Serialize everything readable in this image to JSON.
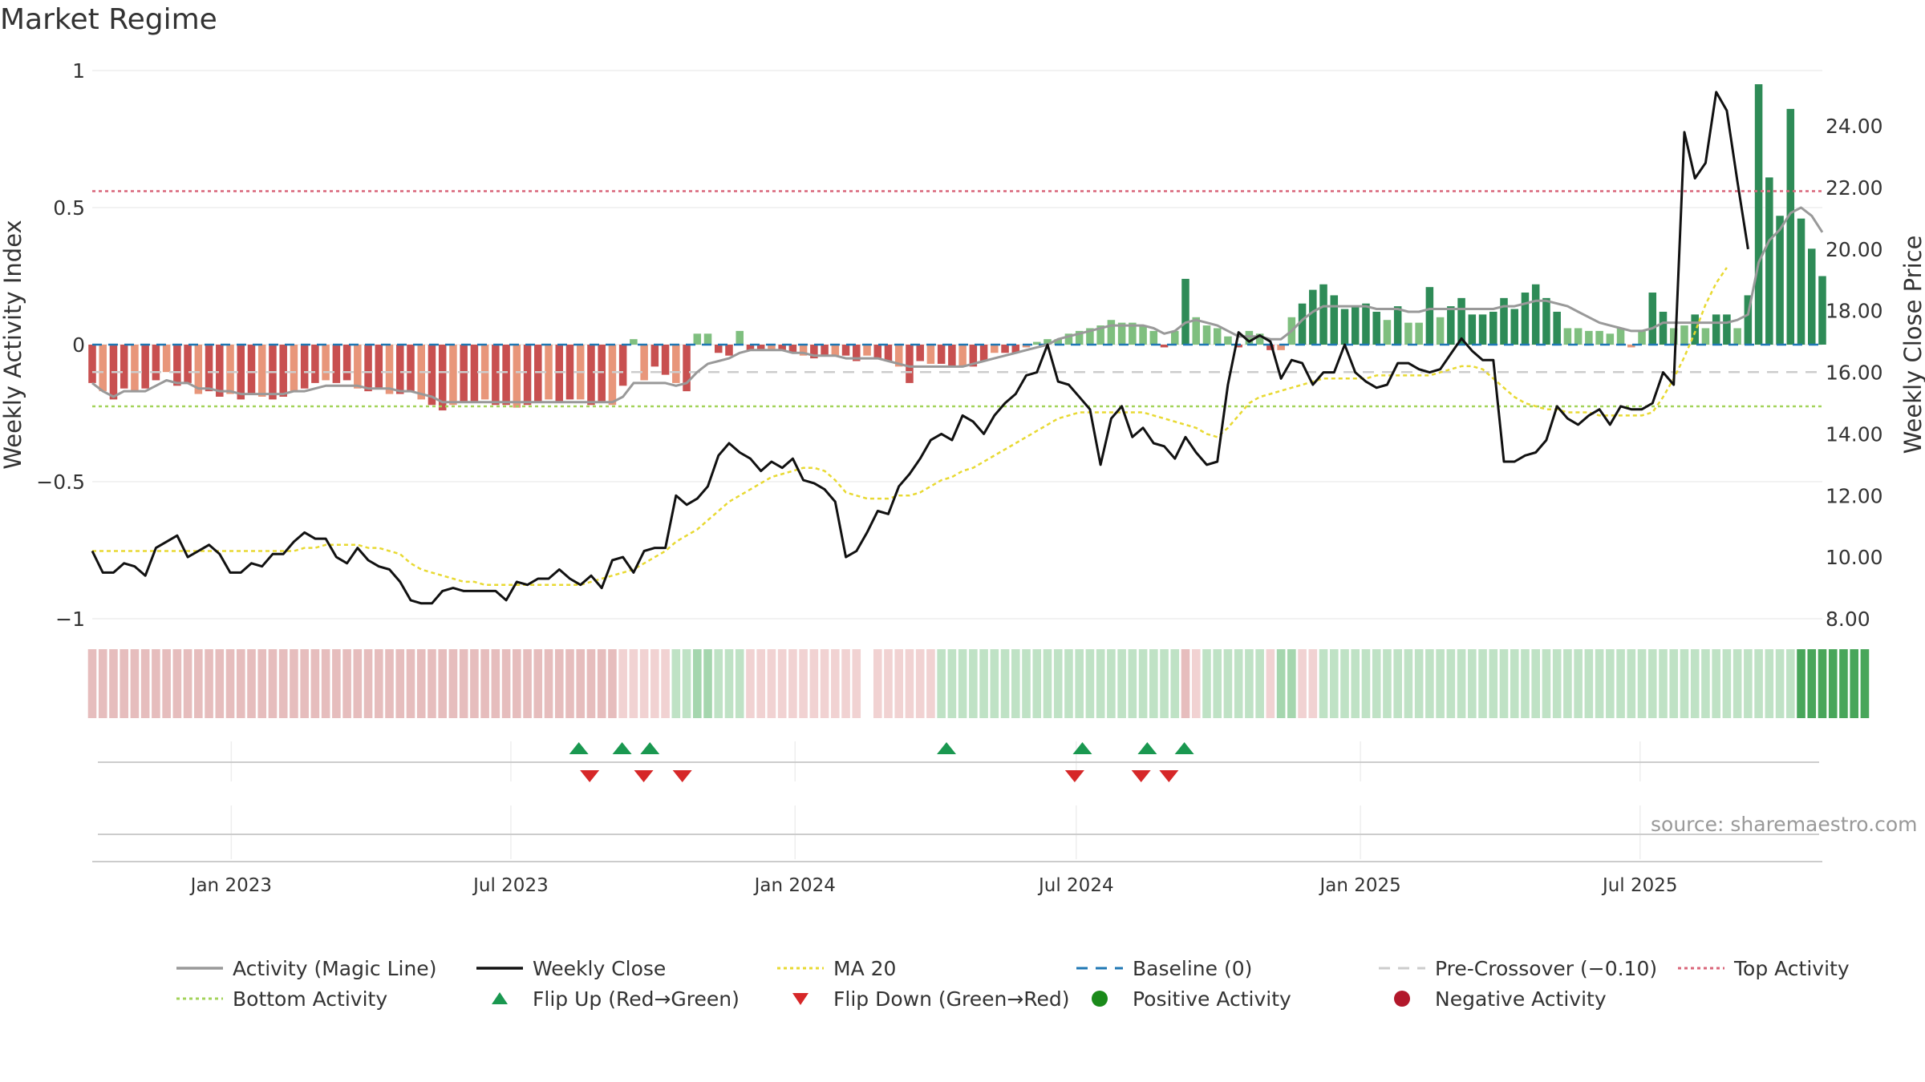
{
  "title": "Market Regime",
  "source": "source: sharemaestro.com",
  "colors": {
    "magic_line": "#999999",
    "close": "#111111",
    "ma20": "#e8d932",
    "baseline": "#1f77b4",
    "pre_crossover": "#cccccc",
    "top": "#d9667a",
    "bottom": "#a3d35a",
    "flip_up": "#1a9850",
    "flip_down": "#d62728",
    "positive": "#1a8a1a",
    "negative": "#b2182b",
    "bar_pos_strong": "#2e8b57",
    "bar_pos_weak": "#7fbf7f",
    "bar_neg_strong": "#c85050",
    "bar_neg_weak": "#e8967a"
  },
  "legend": [
    {
      "key": "magic",
      "label": "Activity (Magic Line)",
      "icon": "solid-line"
    },
    {
      "key": "close",
      "label": "Weekly Close",
      "icon": "solid-line"
    },
    {
      "key": "ma20",
      "label": "MA 20",
      "icon": "dotted-line"
    },
    {
      "key": "baseline",
      "label": "Baseline (0)",
      "icon": "dashed-line"
    },
    {
      "key": "pre",
      "label": "Pre-Crossover (−0.10)",
      "icon": "dashed-line"
    },
    {
      "key": "top",
      "label": "Top Activity",
      "icon": "dotted-line"
    },
    {
      "key": "bottom",
      "label": "Bottom Activity",
      "icon": "dotted-line"
    },
    {
      "key": "flipup",
      "label": "Flip Up (Red→Green)",
      "icon": "triangle-up"
    },
    {
      "key": "flipdown",
      "label": "Flip Down (Green→Red)",
      "icon": "triangle-down"
    },
    {
      "key": "pos",
      "label": "Positive Activity",
      "icon": "circle"
    },
    {
      "key": "neg",
      "label": "Negative Activity",
      "icon": "circle"
    }
  ],
  "chart_data": {
    "type": "bar",
    "ylabel_left": "Weekly Activity Index",
    "ylabel_right": "Weekly Close Price",
    "ylim_left": [
      -1,
      1
    ],
    "yticks_left": [
      1,
      0.5,
      0,
      -0.5,
      -1
    ],
    "ytick_labels_left": [
      "1",
      "0.5",
      "0",
      "−0.5",
      "−1"
    ],
    "ylim_right": [
      8,
      25.8
    ],
    "yticks_right": [
      24,
      22,
      20,
      18,
      16,
      14,
      12,
      10,
      8
    ],
    "ytick_labels_right": [
      "24.00",
      "22.00",
      "20.00",
      "18.00",
      "16.00",
      "14.00",
      "12.00",
      "10.00",
      "8.00"
    ],
    "x_start": "2022-10-03",
    "x_end": "2025-10-27",
    "xticks": [
      {
        "date": "2023-01-01",
        "label": "Jan 2023"
      },
      {
        "date": "2023-07-01",
        "label": "Jul 2023"
      },
      {
        "date": "2024-01-01",
        "label": "Jan 2024"
      },
      {
        "date": "2024-07-01",
        "label": "Jul 2024"
      },
      {
        "date": "2025-01-01",
        "label": "Jan 2025"
      },
      {
        "date": "2025-07-01",
        "label": "Jul 2025"
      }
    ],
    "grid": true,
    "levels": {
      "baseline": 0,
      "pre_crossover": -0.1,
      "top_activity": 0.56,
      "bottom_activity": -0.225
    },
    "activity": [
      -0.14,
      -0.17,
      -0.2,
      -0.16,
      -0.17,
      -0.16,
      -0.13,
      -0.1,
      -0.15,
      -0.14,
      -0.18,
      -0.17,
      -0.19,
      -0.18,
      -0.2,
      -0.18,
      -0.19,
      -0.2,
      -0.19,
      -0.17,
      -0.16,
      -0.14,
      -0.13,
      -0.14,
      -0.13,
      -0.16,
      -0.17,
      -0.16,
      -0.18,
      -0.18,
      -0.17,
      -0.2,
      -0.22,
      -0.24,
      -0.22,
      -0.21,
      -0.21,
      -0.2,
      -0.22,
      -0.22,
      -0.23,
      -0.22,
      -0.21,
      -0.2,
      -0.21,
      -0.2,
      -0.2,
      -0.22,
      -0.21,
      -0.22,
      -0.15,
      0.02,
      -0.13,
      -0.08,
      -0.11,
      -0.14,
      -0.17,
      0.04,
      0.04,
      -0.03,
      -0.04,
      0.05,
      -0.02,
      -0.02,
      -0.02,
      -0.02,
      -0.03,
      -0.04,
      -0.05,
      -0.04,
      -0.04,
      -0.04,
      -0.06,
      -0.04,
      -0.05,
      -0.06,
      -0.08,
      -0.14,
      -0.06,
      -0.07,
      -0.07,
      -0.08,
      -0.08,
      -0.08,
      -0.06,
      -0.03,
      -0.03,
      -0.03,
      -0.01,
      0.01,
      0.02,
      0.02,
      0.04,
      0.05,
      0.06,
      0.07,
      0.09,
      0.08,
      0.08,
      0.07,
      0.05,
      -0.01,
      0.05,
      0.24,
      0.1,
      0.07,
      0.06,
      0.03,
      -0.01,
      0.05,
      0.04,
      -0.02,
      -0.02,
      0.1,
      0.15,
      0.2,
      0.22,
      0.18,
      0.13,
      0.14,
      0.15,
      0.12,
      0.09,
      0.14,
      0.08,
      0.08,
      0.21,
      0.1,
      0.14,
      0.17,
      0.11,
      0.11,
      0.12,
      0.17,
      0.13,
      0.19,
      0.22,
      0.17,
      0.12,
      0.06,
      0.06,
      0.05,
      0.05,
      0.04,
      0.06,
      -0.01,
      0.05,
      0.19,
      0.12,
      0.06,
      0.07,
      0.11,
      0.06,
      0.11,
      0.11,
      0.06,
      0.18,
      0.95,
      0.61,
      0.47,
      0.86,
      0.46,
      0.35,
      0.25
    ],
    "magic_line": [
      -0.14,
      -0.17,
      -0.19,
      -0.17,
      -0.17,
      -0.17,
      -0.15,
      -0.13,
      -0.14,
      -0.14,
      -0.16,
      -0.16,
      -0.17,
      -0.17,
      -0.18,
      -0.18,
      -0.18,
      -0.18,
      -0.18,
      -0.17,
      -0.17,
      -0.16,
      -0.15,
      -0.15,
      -0.15,
      -0.15,
      -0.16,
      -0.16,
      -0.16,
      -0.17,
      -0.17,
      -0.18,
      -0.19,
      -0.21,
      -0.21,
      -0.21,
      -0.21,
      -0.21,
      -0.21,
      -0.21,
      -0.21,
      -0.21,
      -0.21,
      -0.21,
      -0.21,
      -0.21,
      -0.21,
      -0.21,
      -0.21,
      -0.21,
      -0.19,
      -0.14,
      -0.14,
      -0.14,
      -0.14,
      -0.15,
      -0.14,
      -0.1,
      -0.07,
      -0.06,
      -0.05,
      -0.03,
      -0.02,
      -0.02,
      -0.02,
      -0.02,
      -0.03,
      -0.03,
      -0.04,
      -0.04,
      -0.04,
      -0.05,
      -0.05,
      -0.05,
      -0.05,
      -0.06,
      -0.07,
      -0.08,
      -0.08,
      -0.08,
      -0.08,
      -0.08,
      -0.08,
      -0.07,
      -0.06,
      -0.05,
      -0.04,
      -0.03,
      -0.02,
      -0.01,
      0.0,
      0.02,
      0.03,
      0.04,
      0.05,
      0.06,
      0.07,
      0.07,
      0.07,
      0.07,
      0.06,
      0.04,
      0.05,
      0.08,
      0.09,
      0.08,
      0.07,
      0.05,
      0.03,
      0.03,
      0.03,
      0.02,
      0.02,
      0.05,
      0.09,
      0.12,
      0.14,
      0.14,
      0.14,
      0.14,
      0.14,
      0.13,
      0.13,
      0.13,
      0.12,
      0.12,
      0.13,
      0.13,
      0.13,
      0.13,
      0.13,
      0.13,
      0.13,
      0.14,
      0.14,
      0.15,
      0.16,
      0.16,
      0.15,
      0.14,
      0.12,
      0.1,
      0.08,
      0.07,
      0.06,
      0.05,
      0.05,
      0.06,
      0.08,
      0.08,
      0.08,
      0.08,
      0.08,
      0.08,
      0.08,
      0.09,
      0.11,
      0.3,
      0.38,
      0.42,
      0.48,
      0.5,
      0.47,
      0.41
    ],
    "weekly_close": [
      10.2,
      9.5,
      9.5,
      9.8,
      9.7,
      9.4,
      10.3,
      10.5,
      10.7,
      10.0,
      10.2,
      10.4,
      10.1,
      9.5,
      9.5,
      9.8,
      9.7,
      10.1,
      10.1,
      10.5,
      10.8,
      10.6,
      10.6,
      10.0,
      9.8,
      10.3,
      9.9,
      9.7,
      9.6,
      9.2,
      8.6,
      8.5,
      8.5,
      8.9,
      9.0,
      8.9,
      8.9,
      8.9,
      8.9,
      8.6,
      9.2,
      9.1,
      9.3,
      9.3,
      9.6,
      9.3,
      9.1,
      9.4,
      9.0,
      9.9,
      10.0,
      9.5,
      10.2,
      10.3,
      10.3,
      12.0,
      11.7,
      11.9,
      12.3,
      13.3,
      13.7,
      13.4,
      13.2,
      12.8,
      13.1,
      12.9,
      13.2,
      12.5,
      12.4,
      12.2,
      11.8,
      10.0,
      10.2,
      10.8,
      11.5,
      11.4,
      12.3,
      12.7,
      13.2,
      13.8,
      14.0,
      13.8,
      14.6,
      14.4,
      14.0,
      14.6,
      15.0,
      15.3,
      15.9,
      16.0,
      16.9,
      15.7,
      15.6,
      15.2,
      14.8,
      13.0,
      14.5,
      14.9,
      13.9,
      14.2,
      13.7,
      13.6,
      13.2,
      13.9,
      13.4,
      13.0,
      13.1,
      15.6,
      17.3,
      17.0,
      17.2,
      17.0,
      15.8,
      16.4,
      16.3,
      15.6,
      16.0,
      16.0,
      16.9,
      16.0,
      15.7,
      15.5,
      15.6,
      16.3,
      16.3,
      16.1,
      16.0,
      16.1,
      16.6,
      17.1,
      16.7,
      16.4,
      16.4,
      13.1,
      13.1,
      13.3,
      13.4,
      13.8,
      14.9,
      14.5,
      14.3,
      14.6,
      14.8,
      14.3,
      14.9,
      14.8,
      14.8,
      15.0,
      16.0,
      15.6,
      23.8,
      22.3,
      22.8,
      25.1,
      24.5,
      22.2,
      20.0
    ],
    "ma20": [
      10.2,
      10.2,
      10.2,
      10.2,
      10.2,
      10.2,
      10.2,
      10.2,
      10.2,
      10.2,
      10.2,
      10.2,
      10.2,
      10.2,
      10.2,
      10.2,
      10.2,
      10.2,
      10.2,
      10.2,
      10.3,
      10.3,
      10.4,
      10.4,
      10.4,
      10.4,
      10.3,
      10.3,
      10.2,
      10.1,
      9.8,
      9.6,
      9.5,
      9.4,
      9.3,
      9.2,
      9.2,
      9.1,
      9.1,
      9.1,
      9.1,
      9.1,
      9.1,
      9.1,
      9.1,
      9.1,
      9.1,
      9.2,
      9.3,
      9.4,
      9.5,
      9.6,
      9.8,
      10.0,
      10.2,
      10.5,
      10.7,
      10.9,
      11.2,
      11.5,
      11.8,
      12.0,
      12.2,
      12.4,
      12.6,
      12.7,
      12.8,
      12.9,
      12.9,
      12.8,
      12.5,
      12.1,
      12.0,
      11.9,
      11.9,
      11.9,
      12.0,
      12.0,
      12.1,
      12.3,
      12.5,
      12.6,
      12.8,
      12.9,
      13.1,
      13.3,
      13.5,
      13.7,
      13.9,
      14.1,
      14.3,
      14.5,
      14.6,
      14.7,
      14.7,
      14.7,
      14.7,
      14.7,
      14.7,
      14.7,
      14.6,
      14.5,
      14.4,
      14.3,
      14.2,
      14.0,
      13.9,
      14.2,
      14.6,
      15.0,
      15.2,
      15.3,
      15.4,
      15.5,
      15.6,
      15.7,
      15.8,
      15.8,
      15.8,
      15.8,
      15.8,
      15.9,
      15.9,
      15.9,
      15.9,
      15.9,
      15.9,
      16.0,
      16.1,
      16.2,
      16.2,
      16.1,
      15.8,
      15.5,
      15.2,
      15.0,
      14.9,
      14.8,
      14.8,
      14.7,
      14.7,
      14.7,
      14.6,
      14.6,
      14.6,
      14.6,
      14.6,
      14.7,
      15.2,
      15.8,
      16.5,
      17.3,
      18.2,
      18.9,
      19.4
    ]
  },
  "regime_strip": [
    0,
    0,
    0,
    0,
    0,
    0,
    0,
    0,
    0,
    0,
    0,
    0,
    0,
    0,
    0,
    0,
    0,
    0,
    0,
    0,
    0,
    0,
    0,
    0,
    0,
    0,
    0,
    0,
    0,
    0,
    0,
    0,
    0,
    0,
    0,
    0,
    0,
    0,
    0,
    0,
    0,
    0,
    0,
    0,
    0,
    0,
    0,
    0,
    0,
    0,
    1,
    1,
    1,
    1,
    1,
    2,
    2,
    3,
    3,
    2,
    2,
    2,
    1,
    1,
    1,
    1,
    1,
    1,
    1,
    1,
    1,
    1,
    1,
    -1,
    1,
    1,
    1,
    1,
    1,
    1,
    2,
    2,
    2,
    2,
    2,
    2,
    2,
    2,
    2,
    2,
    2,
    2,
    2,
    2,
    2,
    2,
    2,
    2,
    2,
    2,
    2,
    2,
    2,
    0,
    1,
    2,
    2,
    2,
    2,
    2,
    2,
    1,
    3,
    3,
    1,
    1,
    2,
    2,
    2,
    2,
    2,
    2,
    2,
    2,
    2,
    2,
    2,
    2,
    2,
    2,
    2,
    2,
    2,
    2,
    2,
    2,
    2,
    2,
    2,
    2,
    2,
    2,
    2,
    2,
    2,
    2,
    2,
    2,
    2,
    2,
    2,
    2,
    2,
    2,
    2,
    2,
    2,
    2,
    2,
    2,
    2,
    4,
    4,
    4,
    4,
    4,
    4,
    4
  ],
  "flips": {
    "up": [
      "2023-08-14",
      "2023-09-11",
      "2023-09-29",
      "2024-04-08",
      "2024-07-05",
      "2024-08-16",
      "2024-09-09"
    ],
    "down": [
      "2023-08-21",
      "2023-09-25",
      "2023-10-20",
      "2024-06-30",
      "2024-08-12",
      "2024-08-30"
    ]
  }
}
